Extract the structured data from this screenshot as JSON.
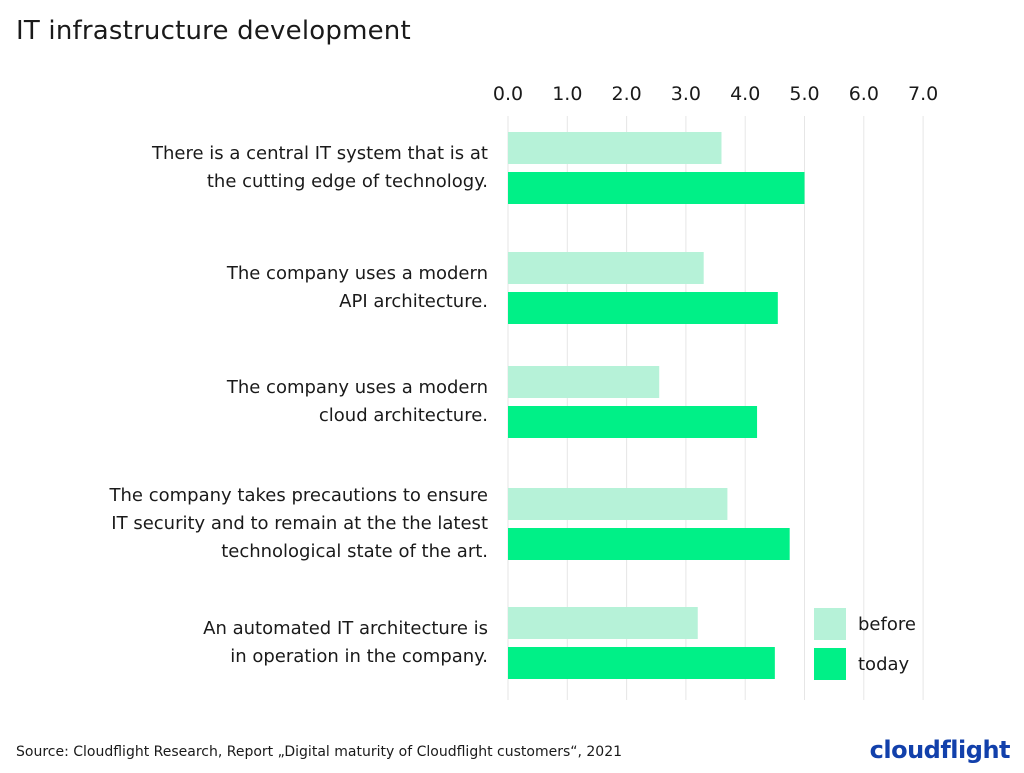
{
  "chart_data": {
    "type": "bar",
    "orientation": "horizontal",
    "title": "IT infrastructure development",
    "categories": [
      "There is a central IT system that is at\nthe cutting edge of technology.",
      "The company uses a modern\nAPI architecture.",
      "The company uses a modern \ncloud architecture.",
      "The company takes precautions to ensure\nIT security and to remain at the the latest\ntechnological state of the art.",
      "An automated IT architecture is\nin operation in the company."
    ],
    "series": [
      {
        "name": "before",
        "color": "#b6f2d8",
        "values": [
          3.6,
          3.3,
          2.55,
          3.7,
          3.2
        ]
      },
      {
        "name": "today",
        "color": "#00f087",
        "values": [
          5.0,
          4.55,
          4.2,
          4.75,
          4.5
        ]
      }
    ],
    "xlim": [
      0,
      7
    ],
    "ticks": [
      "0.0",
      "1.0",
      "2.0",
      "3.0",
      "4.0",
      "5.0",
      "6.0",
      "7.0"
    ],
    "tick_values": [
      0,
      1,
      2,
      3,
      4,
      5,
      6,
      7
    ],
    "grid": true,
    "legend_position": "bottom-right",
    "xlabel": "",
    "ylabel": ""
  },
  "footer": {
    "source": "Source: Cloudflight Research, Report „Digital maturity of Cloudflight customers“, 2021",
    "logo": "cloudflight"
  }
}
